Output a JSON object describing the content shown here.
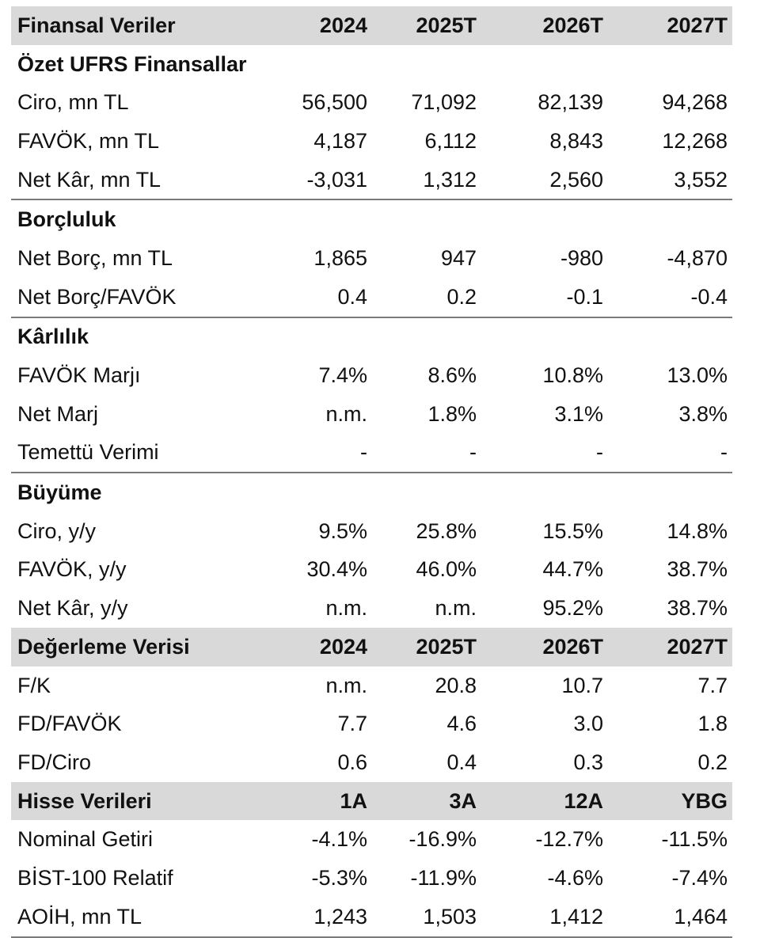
{
  "table": {
    "financial_header": {
      "label": "Finansal Veriler",
      "cols": [
        "2024",
        "2025T",
        "2026T",
        "2027T"
      ]
    },
    "sections": [
      {
        "title": "Özet UFRS Finansallar",
        "rows": [
          {
            "label": "Ciro, mn TL",
            "values": [
              "56,500",
              "71,092",
              "82,139",
              "94,268"
            ]
          },
          {
            "label": "FAVÖK, mn TL",
            "values": [
              "4,187",
              "6,112",
              "8,843",
              "12,268"
            ]
          },
          {
            "label": "Net Kâr, mn TL",
            "values": [
              "-3,031",
              "1,312",
              "2,560",
              "3,552"
            ]
          }
        ]
      },
      {
        "title": "Borçluluk",
        "rows": [
          {
            "label": "Net Borç, mn TL",
            "values": [
              "1,865",
              "947",
              "-980",
              "-4,870"
            ]
          },
          {
            "label": "Net Borç/FAVÖK",
            "values": [
              "0.4",
              "0.2",
              "-0.1",
              "-0.4"
            ]
          }
        ]
      },
      {
        "title": "Kârlılık",
        "rows": [
          {
            "label": "FAVÖK Marjı",
            "values": [
              "7.4%",
              "8.6%",
              "10.8%",
              "13.0%"
            ]
          },
          {
            "label": "Net Marj",
            "values": [
              "n.m.",
              "1.8%",
              "3.1%",
              "3.8%"
            ]
          },
          {
            "label": "Temettü Verimi",
            "values": [
              "-",
              "-",
              "-",
              "-"
            ]
          }
        ]
      },
      {
        "title": "Büyüme",
        "rows": [
          {
            "label": "Ciro, y/y",
            "values": [
              "9.5%",
              "25.8%",
              "15.5%",
              "14.8%"
            ]
          },
          {
            "label": "FAVÖK, y/y",
            "values": [
              "30.4%",
              "46.0%",
              "44.7%",
              "38.7%"
            ]
          },
          {
            "label": "Net Kâr, y/y",
            "values": [
              "n.m.",
              "n.m.",
              "95.2%",
              "38.7%"
            ]
          }
        ]
      }
    ],
    "valuation_header": {
      "label": "Değerleme Verisi",
      "cols": [
        "2024",
        "2025T",
        "2026T",
        "2027T"
      ]
    },
    "valuation_rows": [
      {
        "label": "F/K",
        "values": [
          "n.m.",
          "20.8",
          "10.7",
          "7.7"
        ]
      },
      {
        "label": "FD/FAVÖK",
        "values": [
          "7.7",
          "4.6",
          "3.0",
          "1.8"
        ]
      },
      {
        "label": "FD/Ciro",
        "values": [
          "0.6",
          "0.4",
          "0.3",
          "0.2"
        ]
      }
    ],
    "share_header": {
      "label": "Hisse Verileri",
      "cols": [
        "1A",
        "3A",
        "12A",
        "YBG"
      ]
    },
    "share_rows": [
      {
        "label": "Nominal Getiri",
        "values": [
          "-4.1%",
          "-16.9%",
          "-12.7%",
          "-11.5%"
        ]
      },
      {
        "label": "BİST-100 Relatif",
        "values": [
          "-5.3%",
          "-11.9%",
          "-4.6%",
          "-7.4%"
        ]
      },
      {
        "label": "AOİH, mn TL",
        "values": [
          "1,243",
          "1,503",
          "1,412",
          "1,464"
        ]
      }
    ]
  }
}
